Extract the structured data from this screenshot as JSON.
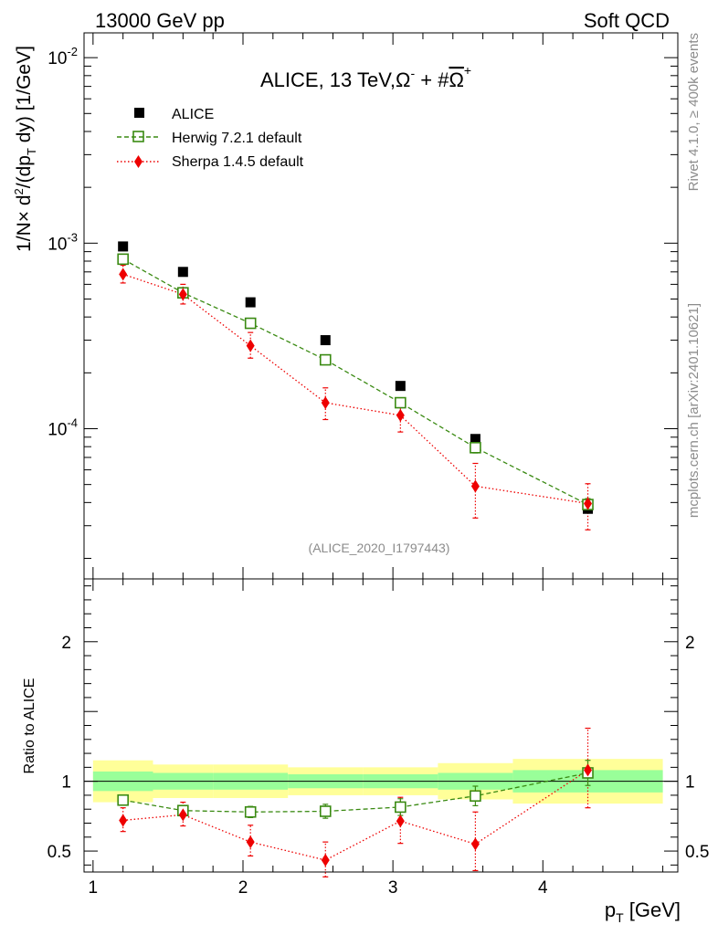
{
  "header": {
    "left": "13000 GeV pp",
    "right": "Soft QCD"
  },
  "side": {
    "rivet": "Rivet 4.1.0, ≥ 400k events",
    "mcplots": "mcplots.cern.ch [arXiv:2401.10621]"
  },
  "colors": {
    "alice": "#000000",
    "herwig": "#3a8a12",
    "sherpa": "#ee0000",
    "band_inner": "#99ff99",
    "band_outer": "#ffff99"
  },
  "chart_data": [
    {
      "type": "scatter",
      "title": "ALICE, 13 TeV,Ω- + #Ω+",
      "title_parts": {
        "base": "ALICE, 13 TeV,Ω",
        "sup1": "-",
        "plus": " + #",
        "bar": "Ω",
        "sup2": "+"
      },
      "ylabel": "1/N × d²/(dp_T dy) [1/GeV]",
      "ylabel_parts": {
        "a": "1/N",
        "times": "×",
        "b": " d",
        "sup": "2",
        "c": "/(dp",
        "sub": "T",
        "d": " dy) [1/GeV]"
      },
      "yscale": "log",
      "ylim": [
        1.55e-05,
        0.0136
      ],
      "xlim": [
        0.94,
        4.9
      ],
      "y_ticks": [
        {
          "base": "10",
          "exp": "-2",
          "value": 0.01
        },
        {
          "base": "10",
          "exp": "-3",
          "value": 0.001
        },
        {
          "base": "10",
          "exp": "-4",
          "value": 0.0001
        }
      ],
      "watermark": "(ALICE_2020_I1797443)",
      "legend": [
        "ALICE",
        "Herwig 7.2.1 default",
        "Sherpa 1.4.5 default"
      ],
      "series": [
        {
          "name": "ALICE",
          "x": [
            1.2,
            1.6,
            2.05,
            2.55,
            3.05,
            3.55,
            4.3
          ],
          "y": [
            0.00096,
            0.0007,
            0.00048,
            0.0003,
            0.00017,
            8.8e-05,
            3.7e-05
          ]
        },
        {
          "name": "Herwig 7.2.1 default",
          "x": [
            1.2,
            1.6,
            2.05,
            2.55,
            3.05,
            3.55,
            4.3
          ],
          "y": [
            0.00082,
            0.00054,
            0.00037,
            0.000235,
            0.000138,
            7.9e-05,
            3.9e-05
          ],
          "err": [
            2e-05,
            2e-05,
            1.5e-05,
            1e-05,
            8e-06,
            5e-06,
            3e-06
          ]
        },
        {
          "name": "Sherpa 1.4.5 default",
          "x": [
            1.2,
            1.6,
            2.05,
            2.55,
            3.05,
            3.55,
            4.3
          ],
          "y": [
            0.00068,
            0.00053,
            0.00028,
            0.000138,
            0.000118,
            4.9e-05,
            3.95e-05
          ],
          "err_lo": [
            7e-05,
            6e-05,
            4e-05,
            2.6e-05,
            2.2e-05,
            1.6e-05,
            1.1e-05
          ],
          "err_hi": [
            8e-05,
            7e-05,
            5e-05,
            2.8e-05,
            2.6e-05,
            1.6e-05,
            1.1e-05
          ]
        }
      ]
    },
    {
      "type": "scatter",
      "ylabel": "Ratio to ALICE",
      "xlabel": "p_T [GeV]",
      "xlabel_parts": {
        "p": "p",
        "sub": "T",
        "unit": " [GeV]"
      },
      "ylim": [
        0.35,
        2.45
      ],
      "xlim": [
        0.94,
        4.9
      ],
      "x_ticks": [
        "1",
        "2",
        "3",
        "4"
      ],
      "y_ticks": [
        "0.5",
        "1",
        "2"
      ],
      "bands": [
        {
          "x0": 1.0,
          "x1": 1.4,
          "inner": [
            0.93,
            1.07
          ],
          "outer": [
            0.85,
            1.15
          ]
        },
        {
          "x0": 1.4,
          "x1": 1.8,
          "inner": [
            0.94,
            1.06
          ],
          "outer": [
            0.88,
            1.12
          ]
        },
        {
          "x0": 1.8,
          "x1": 2.3,
          "inner": [
            0.94,
            1.06
          ],
          "outer": [
            0.88,
            1.12
          ]
        },
        {
          "x0": 2.3,
          "x1": 2.8,
          "inner": [
            0.95,
            1.05
          ],
          "outer": [
            0.9,
            1.1
          ]
        },
        {
          "x0": 2.8,
          "x1": 3.3,
          "inner": [
            0.95,
            1.05
          ],
          "outer": [
            0.9,
            1.1
          ]
        },
        {
          "x0": 3.3,
          "x1": 3.8,
          "inner": [
            0.94,
            1.06
          ],
          "outer": [
            0.87,
            1.13
          ]
        },
        {
          "x0": 3.8,
          "x1": 4.8,
          "inner": [
            0.92,
            1.08
          ],
          "outer": [
            0.84,
            1.16
          ]
        }
      ],
      "series": [
        {
          "name": "Herwig 7.2.1 default",
          "x": [
            1.2,
            1.6,
            2.05,
            2.55,
            3.05,
            3.55,
            4.3
          ],
          "y": [
            0.865,
            0.79,
            0.78,
            0.785,
            0.815,
            0.895,
            1.06
          ],
          "err": [
            0.02,
            0.03,
            0.04,
            0.05,
            0.06,
            0.07,
            0.09
          ]
        },
        {
          "name": "Sherpa 1.4.5 default",
          "x": [
            1.2,
            1.6,
            2.05,
            2.55,
            3.05,
            3.55,
            4.3
          ],
          "y": [
            0.72,
            0.76,
            0.565,
            0.435,
            0.715,
            0.55,
            1.08
          ],
          "err_lo": [
            0.08,
            0.08,
            0.1,
            0.12,
            0.16,
            0.19,
            0.27
          ],
          "err_hi": [
            0.09,
            0.09,
            0.12,
            0.13,
            0.17,
            0.23,
            0.3
          ]
        }
      ]
    }
  ]
}
